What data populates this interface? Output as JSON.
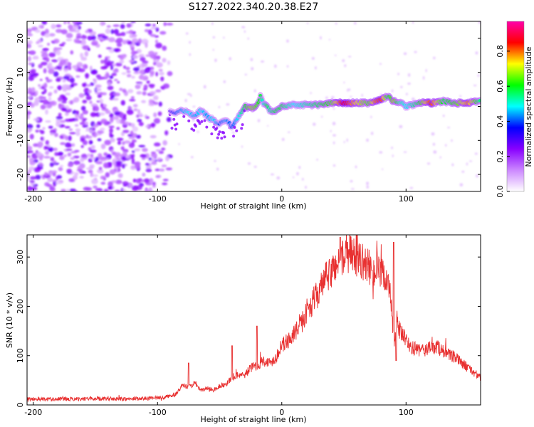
{
  "title": "S127.2022.340.20.38.E27",
  "colorbar": {
    "label": "Normalized spectral amplitude",
    "ticks": [
      "0.0",
      "0.2",
      "0.4",
      "0.6",
      "0.8"
    ],
    "tick_values": [
      0.0,
      0.2,
      0.4,
      0.6,
      0.8
    ],
    "range": [
      0,
      0.97
    ],
    "colormap": [
      "#ffffff",
      "#cc88ff",
      "#8800ff",
      "#0000ff",
      "#00ffff",
      "#00ff00",
      "#ffff00",
      "#ff0000",
      "#ff00aa"
    ]
  },
  "chart_data": [
    {
      "type": "heatmap",
      "xlabel": "Height of straight line (km)",
      "ylabel": "Frequency (Hz)",
      "xlim": [
        -205,
        160
      ],
      "ylim": [
        -25,
        25
      ],
      "xticks": [
        -200,
        -100,
        0,
        100
      ],
      "xtick_labels": [
        "-200",
        "-100",
        "0",
        "100"
      ],
      "yticks": [
        -20,
        -10,
        0,
        10,
        20
      ],
      "ytick_labels": [
        "-20",
        "-10",
        "0",
        "10",
        "20"
      ],
      "noise_region_x": [
        -205,
        -90
      ],
      "signal_trace": {
        "x": [
          -90,
          -85,
          -80,
          -75,
          -70,
          -65,
          -60,
          -55,
          -50,
          -45,
          -40,
          -35,
          -30,
          -25,
          -20,
          -17,
          -15,
          -12,
          -10,
          -5,
          0,
          10,
          20,
          30,
          40,
          50,
          60,
          70,
          75,
          80,
          85,
          90,
          95,
          100,
          110,
          120,
          130,
          140,
          150,
          160
        ],
        "frequency": [
          -1,
          -2,
          -1,
          -2,
          -3,
          -1,
          -3,
          -4,
          -5,
          -4,
          -6,
          -3,
          0,
          -0.5,
          0,
          3,
          1,
          0,
          -1,
          -1.5,
          0,
          0.5,
          0.5,
          0.5,
          1,
          1,
          1,
          1,
          1.5,
          2,
          3,
          1.5,
          1.2,
          0,
          1,
          1,
          1.5,
          1,
          1,
          1.5
        ],
        "amplitude": [
          0.3,
          0.4,
          0.45,
          0.5,
          0.45,
          0.5,
          0.45,
          0.5,
          0.4,
          0.45,
          0.4,
          0.5,
          0.6,
          0.7,
          0.65,
          0.6,
          0.5,
          0.6,
          0.55,
          0.6,
          0.6,
          0.5,
          0.55,
          0.6,
          0.65,
          0.9,
          0.75,
          0.65,
          0.8,
          0.85,
          0.6,
          0.7,
          0.55,
          0.5,
          0.6,
          0.85,
          0.6,
          0.65,
          0.8,
          0.55
        ]
      }
    },
    {
      "type": "line",
      "xlabel": "Height of straight line (km)",
      "ylabel": "SNR (10 * v/v)",
      "xlim": [
        -205,
        160
      ],
      "ylim": [
        0,
        345
      ],
      "xticks": [
        -200,
        -100,
        0,
        100
      ],
      "xtick_labels": [
        "-200",
        "-100",
        "0",
        "100"
      ],
      "yticks": [
        0,
        100,
        200,
        300
      ],
      "ytick_labels": [
        "0",
        "100",
        "200",
        "300"
      ],
      "color": "#e83030",
      "series": [
        {
          "x": [
            -205,
            -190,
            -170,
            -150,
            -130,
            -110,
            -100,
            -95,
            -90,
            -85,
            -80,
            -75,
            -70,
            -65,
            -60,
            -55,
            -50,
            -45,
            -40,
            -35,
            -30,
            -25,
            -20,
            -15,
            -10,
            -5,
            0,
            5,
            10,
            15,
            20,
            25,
            30,
            35,
            40,
            45,
            50,
            55,
            60,
            65,
            70,
            75,
            80,
            85,
            88,
            90,
            92,
            95,
            100,
            105,
            110,
            115,
            120,
            125,
            130,
            135,
            140,
            145,
            150,
            155,
            160
          ],
          "values": [
            12,
            12,
            12,
            13,
            12,
            13,
            14,
            15,
            18,
            22,
            40,
            35,
            45,
            28,
            35,
            30,
            38,
            42,
            55,
            62,
            60,
            75,
            80,
            90,
            85,
            95,
            120,
            130,
            145,
            160,
            190,
            210,
            230,
            255,
            270,
            290,
            300,
            305,
            300,
            290,
            280,
            270,
            265,
            255,
            210,
            110,
            170,
            150,
            130,
            115,
            110,
            112,
            115,
            118,
            110,
            100,
            95,
            85,
            75,
            65,
            55
          ],
          "spikes": [
            {
              "x": -75,
              "value": 85
            },
            {
              "x": -40,
              "value": 120
            },
            {
              "x": -20,
              "value": 160
            },
            {
              "x": 47,
              "value": 340
            },
            {
              "x": 90,
              "value": 330
            },
            {
              "x": 92,
              "value": 90
            }
          ]
        }
      ]
    }
  ]
}
